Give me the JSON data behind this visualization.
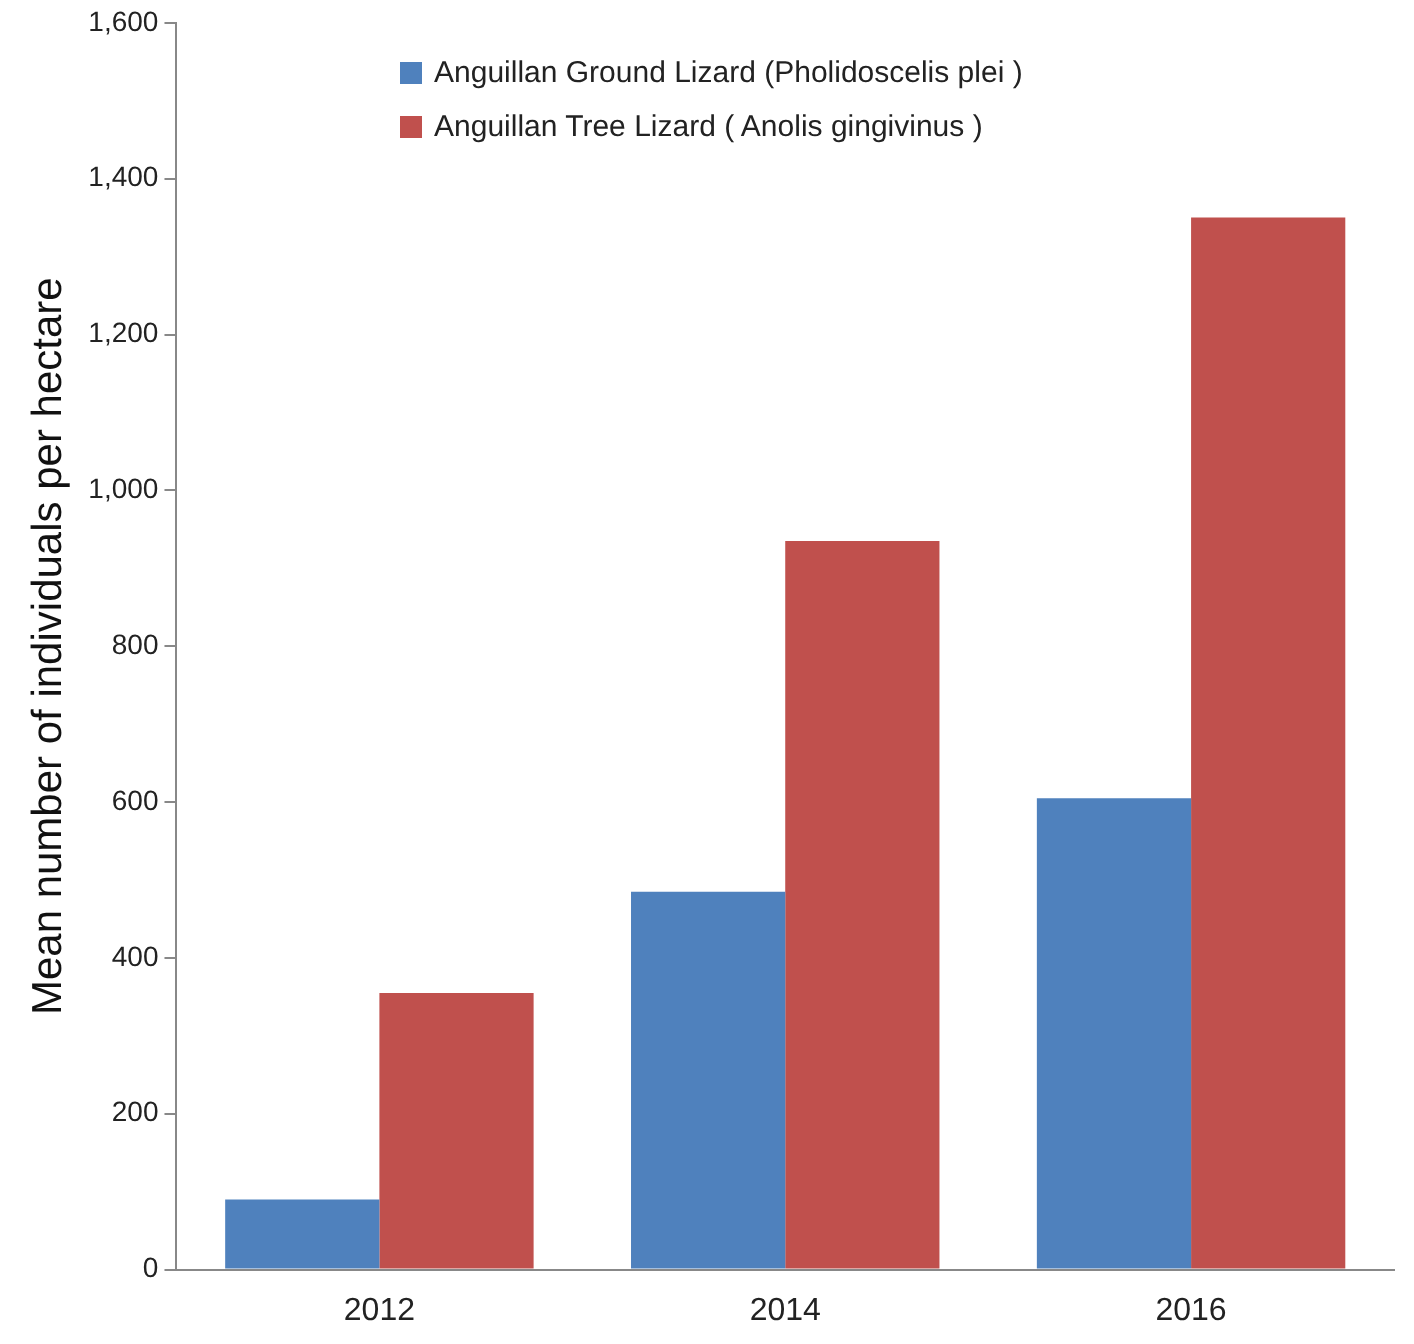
{
  "chart_data": {
    "type": "bar",
    "ylabel": "Mean number of individuals per hectare",
    "categories": [
      "2012",
      "2014",
      "2016"
    ],
    "series": [
      {
        "name": "Anguillan Ground Lizard (Pholidoscelis plei )",
        "color": "#4f81bd",
        "values": [
          90,
          485,
          605
        ]
      },
      {
        "name": "Anguillan Tree Lizard ( Anolis gingivinus )",
        "color": "#c0504d",
        "values": [
          355,
          935,
          1350
        ]
      }
    ],
    "ylim": [
      0,
      1600
    ],
    "yticks": [
      0,
      200,
      400,
      600,
      800,
      {
        "value": 1000,
        "label": "1,000"
      },
      {
        "value": 1200,
        "label": "1,200"
      },
      {
        "value": 1400,
        "label": "1,400"
      },
      {
        "value": 1600,
        "label": "1,600"
      }
    ],
    "grid": false,
    "legend": "top"
  }
}
